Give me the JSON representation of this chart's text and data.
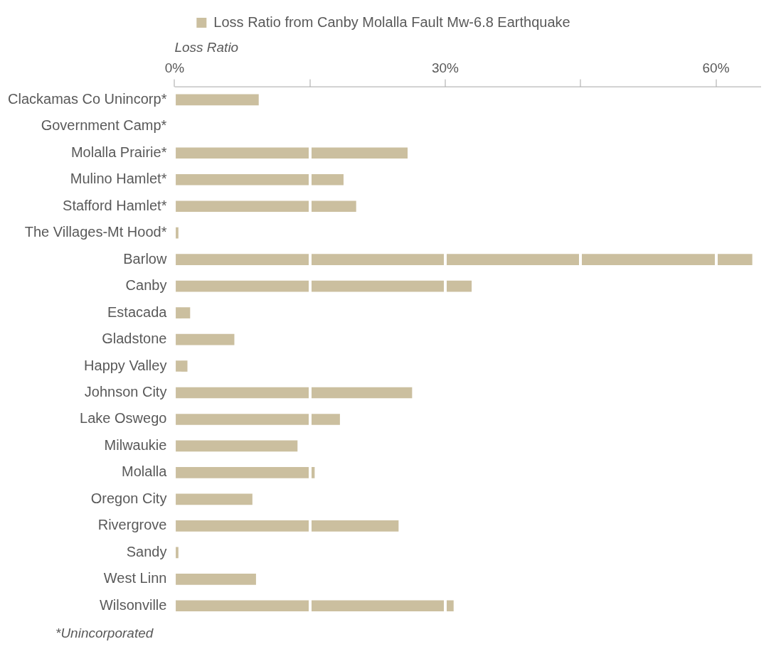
{
  "chart_data": {
    "type": "bar",
    "orientation": "horizontal",
    "xlabel": "Loss Ratio",
    "categories": [
      "Clackamas Co Unincorp*",
      "Government Camp*",
      "Molalla Prairie*",
      "Mulino Hamlet*",
      "Stafford Hamlet*",
      "The Villages-Mt Hood*",
      "Barlow",
      "Canby",
      "Estacada",
      "Gladstone",
      "Happy Valley",
      "Johnson City",
      "Lake Oswego",
      "Milwaukie",
      "Molalla",
      "Oregon City",
      "Rivergrove",
      "Sandy",
      "West Linn",
      "Wilsonville"
    ],
    "series": [
      {
        "name": "Loss Ratio from Canby Molalla Fault Mw-6.8 Earthquake",
        "color": "#cbbf9f",
        "values": [
          9.3,
          0,
          25.8,
          18.7,
          20.1,
          0.4,
          64.0,
          32.9,
          1.7,
          6.6,
          1.4,
          26.3,
          18.3,
          13.6,
          15.5,
          8.6,
          24.8,
          0.4,
          9.0,
          30.9
        ]
      }
    ],
    "xlim": [
      0,
      65
    ],
    "xticks": [
      {
        "value": 0,
        "label": "0%"
      },
      {
        "value": 15,
        "label": null
      },
      {
        "value": 30,
        "label": "30%"
      },
      {
        "value": 45,
        "label": null
      },
      {
        "value": 60,
        "label": "60%"
      }
    ],
    "grid": "x",
    "legend": "top",
    "annotations": [
      "*Unincorporated"
    ]
  }
}
